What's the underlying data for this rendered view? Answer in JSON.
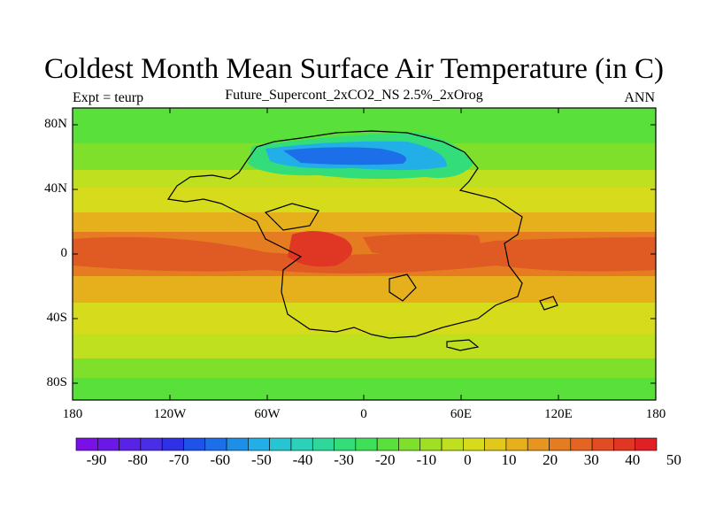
{
  "title": "Coldest Month Mean Surface Air Temperature (in C)",
  "subtitle_left": "Expt = teurp",
  "subtitle_center": "Future_Supercont_2xCO2_NS 2.5%_2xOrog",
  "subtitle_right": "ANN",
  "axes": {
    "y_ticks": [
      "80N",
      "40N",
      "0",
      "40S",
      "80S"
    ],
    "x_ticks": [
      "180",
      "120W",
      "60W",
      "0",
      "60E",
      "120E",
      "180"
    ]
  },
  "colorbar": {
    "labels": [
      "-90",
      "-80",
      "-70",
      "-60",
      "-50",
      "-40",
      "-30",
      "-20",
      "-10",
      "0",
      "10",
      "20",
      "30",
      "40",
      "50"
    ],
    "colors": [
      "#7a10e6",
      "#6a18e6",
      "#5a22e6",
      "#4a2ee6",
      "#3030e6",
      "#1f52e6",
      "#1c6fe8",
      "#1d8fe6",
      "#22aee6",
      "#27c4d2",
      "#2bd2b8",
      "#2fd89a",
      "#32dd7a",
      "#3ee05a",
      "#5ae03a",
      "#7ee02a",
      "#a0e024",
      "#bfe01f",
      "#d6dc1c",
      "#e0c81c",
      "#e6b01c",
      "#e69620",
      "#e67c22",
      "#e46424",
      "#e24c24",
      "#e03624",
      "#e02024"
    ]
  },
  "map_colors": {
    "polar": "#5ae03a",
    "subpolar": "#7ee02a",
    "temperate": "#bfe01f",
    "warm": "#d6dc1c",
    "subtropic": "#e6b01c",
    "tropic": "#e67c22",
    "equator": "#e05a24",
    "land_cold": "#1fb8e0",
    "land_cool": "#32dd7a",
    "land_hot": "#e03624",
    "coast": "#000000"
  }
}
